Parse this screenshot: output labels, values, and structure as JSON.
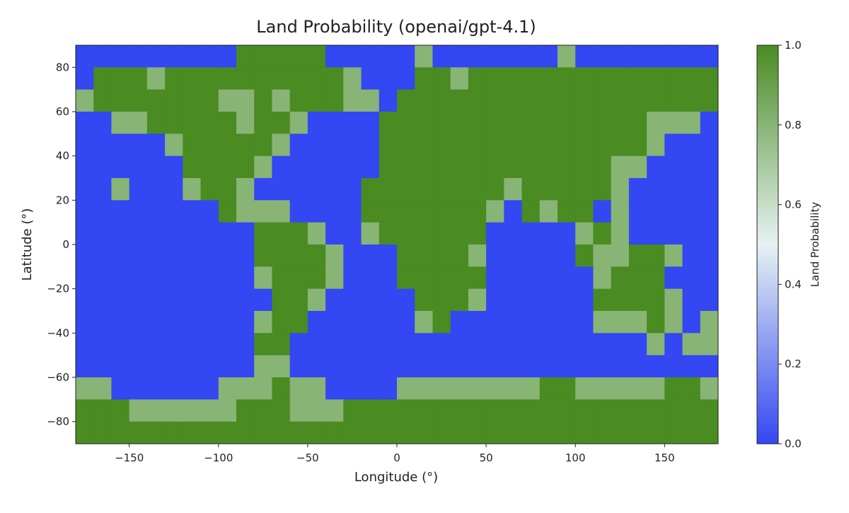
{
  "chart_data": {
    "type": "heatmap",
    "title": "Land Probability (openai/gpt-4.1)",
    "x_label": "Longitude (°)",
    "y_label": "Latitude (°)",
    "xlim": [
      -180,
      180
    ],
    "ylim": [
      -90,
      90
    ],
    "xticks": [
      {
        "value": -150,
        "label": "−150"
      },
      {
        "value": -100,
        "label": "−100"
      },
      {
        "value": -50,
        "label": "−50"
      },
      0,
      50,
      100,
      150
    ],
    "yticks": [
      {
        "value": -80,
        "label": "−80"
      },
      {
        "value": -60,
        "label": "−60"
      },
      {
        "value": -40,
        "label": "−40"
      },
      {
        "value": -20,
        "label": "−20"
      },
      0,
      20,
      40,
      60,
      80
    ],
    "colormap": [
      "#3347f2",
      "#e6f2f2",
      "#4a8b22"
    ],
    "colorbar": {
      "label": "Land Probability",
      "lim": [
        0,
        1
      ],
      "ticks": [
        {
          "value": 0,
          "label": "0.0"
        },
        0.2,
        0.4,
        0.6,
        0.8,
        {
          "value": 1,
          "label": "1.0"
        }
      ]
    },
    "z": [
      [
        0,
        0,
        0,
        0,
        0,
        0,
        0,
        0,
        0,
        1,
        1,
        1,
        1,
        1,
        0,
        0,
        0,
        0,
        0,
        0.8,
        0,
        0,
        0,
        0,
        0,
        0,
        0,
        0.8,
        0,
        0,
        0,
        0,
        0,
        0,
        0,
        0
      ],
      [
        0,
        1,
        1,
        1,
        0.8,
        1,
        1,
        1,
        1,
        1,
        1,
        1,
        1,
        1,
        1,
        0.8,
        0,
        0,
        0,
        1,
        1,
        0.8,
        1,
        1,
        1,
        1,
        1,
        1,
        1,
        1,
        1,
        1,
        1,
        1,
        1,
        1
      ],
      [
        0.8,
        1,
        1,
        1,
        1,
        1,
        1,
        1,
        0.8,
        0.8,
        1,
        0.8,
        1,
        1,
        1,
        0.8,
        0.8,
        0,
        1,
        1,
        1,
        1,
        1,
        1,
        1,
        1,
        1,
        1,
        1,
        1,
        1,
        1,
        1,
        1,
        1,
        1
      ],
      [
        0,
        0,
        0.8,
        0.8,
        1,
        1,
        1,
        1,
        1,
        0.8,
        1,
        1,
        0.8,
        0,
        0,
        0,
        0,
        1,
        1,
        1,
        1,
        1,
        1,
        1,
        1,
        1,
        1,
        1,
        1,
        1,
        1,
        1,
        0.8,
        0.8,
        0.8,
        0
      ],
      [
        0,
        0,
        0,
        0,
        0,
        0.8,
        1,
        1,
        1,
        1,
        1,
        0.8,
        0,
        0,
        0,
        0,
        0,
        1,
        1,
        1,
        1,
        1,
        1,
        1,
        1,
        1,
        1,
        1,
        1,
        1,
        1,
        1,
        0.8,
        0,
        0,
        0
      ],
      [
        0,
        0,
        0,
        0,
        0,
        0,
        1,
        1,
        1,
        1,
        0.8,
        0,
        0,
        0,
        0,
        0,
        0,
        1,
        1,
        1,
        1,
        1,
        1,
        1,
        1,
        1,
        1,
        1,
        1,
        1,
        0.8,
        0.8,
        0,
        0,
        0,
        0
      ],
      [
        0,
        0,
        0.8,
        0,
        0,
        0,
        0.8,
        1,
        1,
        0.8,
        0,
        0,
        0,
        0,
        0,
        0,
        1,
        1,
        1,
        1,
        1,
        1,
        1,
        1,
        0.8,
        1,
        1,
        1,
        1,
        1,
        0.8,
        0,
        0,
        0,
        0,
        0
      ],
      [
        0,
        0,
        0,
        0,
        0,
        0,
        0,
        0,
        1,
        0.8,
        0.8,
        0.8,
        0,
        0,
        0,
        0,
        1,
        1,
        1,
        1,
        1,
        1,
        1,
        0.8,
        0,
        1,
        0.8,
        1,
        1,
        0,
        0.8,
        0,
        0,
        0,
        0,
        0
      ],
      [
        0,
        0,
        0,
        0,
        0,
        0,
        0,
        0,
        0,
        0,
        1,
        1,
        1,
        0.8,
        0,
        0,
        0.8,
        1,
        1,
        1,
        1,
        1,
        1,
        0,
        0,
        0,
        0,
        0,
        0.8,
        1,
        0.8,
        0,
        0,
        0,
        0,
        0
      ],
      [
        0,
        0,
        0,
        0,
        0,
        0,
        0,
        0,
        0,
        0,
        1,
        1,
        1,
        1,
        0.8,
        0,
        0,
        0,
        1,
        1,
        1,
        1,
        0.8,
        0,
        0,
        0,
        0,
        0,
        1,
        0.8,
        0.8,
        1,
        1,
        0.8,
        0,
        0
      ],
      [
        0,
        0,
        0,
        0,
        0,
        0,
        0,
        0,
        0,
        0,
        0.8,
        1,
        1,
        1,
        0.8,
        0,
        0,
        0,
        1,
        1,
        1,
        1,
        1,
        0,
        0,
        0,
        0,
        0,
        0,
        0.8,
        1,
        1,
        1,
        0,
        0,
        0
      ],
      [
        0,
        0,
        0,
        0,
        0,
        0,
        0,
        0,
        0,
        0,
        0,
        1,
        1,
        0.8,
        0,
        0,
        0,
        0,
        0,
        1,
        1,
        1,
        0.8,
        0,
        0,
        0,
        0,
        0,
        0,
        1,
        1,
        1,
        1,
        0.8,
        0,
        0
      ],
      [
        0,
        0,
        0,
        0,
        0,
        0,
        0,
        0,
        0,
        0,
        0.8,
        1,
        1,
        0,
        0,
        0,
        0,
        0,
        0,
        0.8,
        1,
        0,
        0,
        0,
        0,
        0,
        0,
        0,
        0,
        0.8,
        0.8,
        0.8,
        1,
        0.8,
        0,
        0.8
      ],
      [
        0,
        0,
        0,
        0,
        0,
        0,
        0,
        0,
        0,
        0,
        1,
        1,
        0,
        0,
        0,
        0,
        0,
        0,
        0,
        0,
        0,
        0,
        0,
        0,
        0,
        0,
        0,
        0,
        0,
        0,
        0,
        0,
        0.8,
        0,
        0.8,
        0.8
      ],
      [
        0,
        0,
        0,
        0,
        0,
        0,
        0,
        0,
        0,
        0,
        0.8,
        0.8,
        0,
        0,
        0,
        0,
        0,
        0,
        0,
        0,
        0,
        0,
        0,
        0,
        0,
        0,
        0,
        0,
        0,
        0,
        0,
        0,
        0,
        0,
        0,
        0
      ],
      [
        0.8,
        0.8,
        0,
        0,
        0,
        0,
        0,
        0,
        0.8,
        0.8,
        0.8,
        1,
        0.8,
        0.8,
        0,
        0,
        0,
        0,
        0.8,
        0.8,
        0.8,
        0.8,
        0.8,
        0.8,
        0.8,
        0.8,
        1,
        1,
        0.8,
        0.8,
        0.8,
        0.8,
        0.8,
        1,
        1,
        0.8
      ],
      [
        1,
        1,
        1,
        0.8,
        0.8,
        0.8,
        0.8,
        0.8,
        0.8,
        1,
        1,
        1,
        0.8,
        0.8,
        0.8,
        1,
        1,
        1,
        1,
        1,
        1,
        1,
        1,
        1,
        1,
        1,
        1,
        1,
        1,
        1,
        1,
        1,
        1,
        1,
        1,
        1
      ],
      [
        1,
        1,
        1,
        1,
        1,
        1,
        1,
        1,
        1,
        1,
        1,
        1,
        1,
        1,
        1,
        1,
        1,
        1,
        1,
        1,
        1,
        1,
        1,
        1,
        1,
        1,
        1,
        1,
        1,
        1,
        1,
        1,
        1,
        1,
        1,
        1
      ]
    ]
  }
}
